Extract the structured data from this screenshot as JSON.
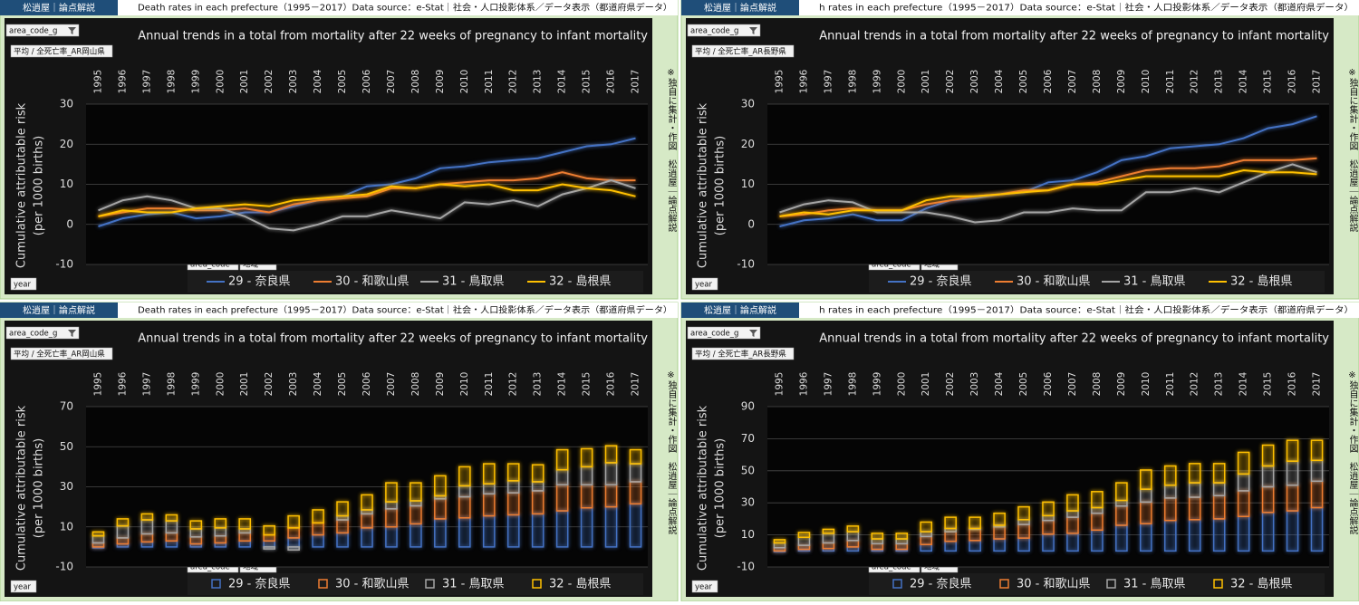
{
  "chart_data": [
    {
      "type": "line",
      "badge": "松逍屋｜論点解説",
      "header": "Death rates in each prefecture（1995－2017）Data source：e-Stat｜社会・人口投影体系／データ表示（都道府県データ）",
      "title": "Annual trends in a total from mortality after 22 weeks of pregnancy to infant mortality",
      "filter_top": "area_code_g",
      "filter_measure": "平均 / 全死亡率_AR岡山県",
      "filter_row": "year",
      "filter_legend": [
        "area_code",
        "地域"
      ],
      "side_note": "※独自に集計・作図　松逍屋｜論点解説",
      "ylabel": [
        "Cumulative attributable risk",
        "(per 1000 births)"
      ],
      "categories": [
        "1995",
        "1996",
        "1997",
        "1998",
        "1999",
        "2000",
        "2001",
        "2002",
        "2003",
        "2004",
        "2005",
        "2006",
        "2007",
        "2008",
        "2009",
        "2010",
        "2011",
        "2012",
        "2013",
        "2014",
        "2015",
        "2016",
        "2017"
      ],
      "series": [
        {
          "name": "29 - 奈良県",
          "color": "#4472c4",
          "values": [
            -0.5,
            1.5,
            2.5,
            3,
            1.5,
            2,
            3,
            3,
            4.5,
            6,
            7,
            9.5,
            10,
            11.5,
            14,
            14.5,
            15.5,
            16,
            16.5,
            18,
            19.5,
            20,
            21.5
          ]
        },
        {
          "name": "30 - 和歌山県",
          "color": "#ed7d31",
          "values": [
            2,
            3,
            4,
            4,
            3.5,
            3.5,
            4,
            3,
            5,
            6,
            6.5,
            7,
            9,
            9,
            10,
            10.5,
            11,
            11,
            11.5,
            13,
            11.5,
            11,
            11
          ]
        },
        {
          "name": "31 - 鳥取県",
          "color": "#a5a5a5",
          "values": [
            3.5,
            6,
            7,
            6,
            4,
            4,
            2,
            -1,
            -1.5,
            0,
            2,
            2,
            3.5,
            2.5,
            1.5,
            5.5,
            5,
            6,
            4.5,
            7.5,
            9,
            11,
            9
          ]
        },
        {
          "name": "32 - 島根県",
          "color": "#ffc000",
          "values": [
            2,
            3.5,
            3,
            3,
            4,
            4.5,
            5,
            4.5,
            6,
            6.5,
            7,
            7.5,
            9.5,
            9,
            10,
            9.5,
            10,
            8.5,
            8.5,
            10,
            9,
            8.5,
            7
          ]
        }
      ],
      "ylim": [
        -10,
        30
      ],
      "yticks": [
        -10,
        0,
        10,
        20,
        30
      ],
      "grid": true
    },
    {
      "type": "line",
      "badge": "松逍屋｜論点解説",
      "header": "h rates in each prefecture（1995－2017）Data source：e-Stat｜社会・人口投影体系／データ表示（都道府県データ）",
      "title": "Annual trends in a total from mortality after 22 weeks of pregnancy to infant mortality",
      "filter_top": "area_code_g",
      "filter_measure": "平均 / 全死亡率_AR長野県",
      "filter_row": "year",
      "filter_legend": [
        "area_code",
        "地域"
      ],
      "side_note": "※独自に集計・作図　松逍屋｜論点解説",
      "ylabel": [
        "Cumulative attributable risk",
        "(per 1000 births)"
      ],
      "categories": [
        "1995",
        "1996",
        "1997",
        "1998",
        "1999",
        "2000",
        "2001",
        "2002",
        "2003",
        "2004",
        "2005",
        "2006",
        "2007",
        "2008",
        "2009",
        "2010",
        "2011",
        "2012",
        "2013",
        "2014",
        "2015",
        "2016",
        "2017"
      ],
      "series": [
        {
          "name": "29 - 奈良県",
          "color": "#4472c4",
          "values": [
            -0.5,
            1,
            1.5,
            2.5,
            1,
            1,
            4,
            6,
            6.5,
            7.5,
            8,
            10.5,
            11,
            13,
            16,
            17,
            19,
            19.5,
            20,
            21.5,
            24,
            25,
            27
          ]
        },
        {
          "name": "30 - 和歌山県",
          "color": "#ed7d31",
          "values": [
            2,
            2.5,
            3.5,
            4,
            3.5,
            3.5,
            5,
            6,
            7,
            7.5,
            8.5,
            8.5,
            10,
            10.5,
            12,
            13.5,
            14,
            14,
            14.5,
            16,
            16,
            16,
            16.5
          ]
        },
        {
          "name": "31 - 鳥取県",
          "color": "#a5a5a5",
          "values": [
            3,
            5,
            6,
            5.5,
            3,
            3,
            3,
            2,
            0.5,
            1,
            3,
            3,
            4,
            3.5,
            3.5,
            8,
            8,
            9,
            8,
            10.5,
            13,
            15,
            13
          ]
        },
        {
          "name": "32 - 島根県",
          "color": "#ffc000",
          "values": [
            2,
            3,
            2.5,
            3.5,
            3.5,
            3.5,
            6,
            7,
            7,
            7.5,
            8,
            8.5,
            10,
            10,
            11,
            12,
            12,
            12,
            12,
            13.5,
            13,
            13,
            12.5
          ]
        }
      ],
      "ylim": [
        -10,
        30
      ],
      "yticks": [
        -10,
        0,
        10,
        20,
        30
      ],
      "grid": true
    },
    {
      "type": "stacked_bar",
      "badge": "松逍屋｜論点解説",
      "header": "Death rates in each prefecture（1995－2017）Data source：e-Stat｜社会・人口投影体系／データ表示（都道府県データ）",
      "title": "Annual trends in a total from mortality after 22 weeks of pregnancy to infant mortality",
      "filter_top": "area_code_g",
      "filter_measure": "平均 / 全死亡率_AR岡山県",
      "filter_row": "year",
      "filter_legend": [
        "area_code",
        "地域"
      ],
      "side_note": "※独自に集計・作図　松逍屋｜論点解説",
      "ylabel": [
        "Cumulative attributable risk",
        "(per 1000 births)"
      ],
      "categories": [
        "1995",
        "1996",
        "1997",
        "1998",
        "1999",
        "2000",
        "2001",
        "2002",
        "2003",
        "2004",
        "2005",
        "2006",
        "2007",
        "2008",
        "2009",
        "2010",
        "2011",
        "2012",
        "2013",
        "2014",
        "2015",
        "2016",
        "2017"
      ],
      "series": [
        {
          "name": "29 - 奈良県",
          "color": "#4472c4",
          "values": [
            -0.5,
            1.5,
            2.5,
            3,
            1.5,
            2,
            3,
            3,
            4.5,
            6,
            7,
            9.5,
            10,
            11.5,
            14,
            14.5,
            15.5,
            16,
            16.5,
            18,
            19.5,
            20,
            21.5
          ]
        },
        {
          "name": "30 - 和歌山県",
          "color": "#ed7d31",
          "values": [
            2,
            3,
            4,
            4,
            3.5,
            3.5,
            4,
            3,
            5,
            6,
            6.5,
            7,
            9,
            9,
            10,
            10.5,
            11,
            11,
            11.5,
            13,
            11.5,
            11,
            11
          ]
        },
        {
          "name": "31 - 鳥取県",
          "color": "#a5a5a5",
          "values": [
            3.5,
            6,
            7,
            6,
            4,
            4,
            2,
            -1,
            -1.5,
            0,
            2,
            2,
            3.5,
            2.5,
            1.5,
            5.5,
            5,
            6,
            4.5,
            7.5,
            9,
            11,
            9
          ]
        },
        {
          "name": "32 - 島根県",
          "color": "#ffc000",
          "values": [
            2,
            3.5,
            3,
            3,
            4,
            4.5,
            5,
            4.5,
            6,
            6.5,
            7,
            7.5,
            9.5,
            9,
            10,
            9.5,
            10,
            8.5,
            8.5,
            10,
            9,
            8.5,
            7
          ]
        }
      ],
      "ylim": [
        -10,
        70
      ],
      "yticks": [
        -10,
        10,
        30,
        50,
        70
      ],
      "grid": true
    },
    {
      "type": "stacked_bar",
      "badge": "松逍屋｜論点解説",
      "header": "h rates in each prefecture（1995－2017）Data source：e-Stat｜社会・人口投影体系／データ表示（都道府県データ）",
      "title": "Annual trends in a total from mortality after 22 weeks of pregnancy to infant mortality",
      "filter_top": "area_code_g",
      "filter_measure": "平均 / 全死亡率_AR長野県",
      "filter_row": "year",
      "filter_legend": [
        "area_code",
        "地域"
      ],
      "side_note": "※独自に集計・作図　松逍屋｜論点解説",
      "ylabel": [
        "Cumulative attributable risk",
        "(per 1000 births)"
      ],
      "categories": [
        "1995",
        "1996",
        "1997",
        "1998",
        "1999",
        "2000",
        "2001",
        "2002",
        "2003",
        "2004",
        "2005",
        "2006",
        "2007",
        "2008",
        "2009",
        "2010",
        "2011",
        "2012",
        "2013",
        "2014",
        "2015",
        "2016",
        "2017"
      ],
      "series": [
        {
          "name": "29 - 奈良県",
          "color": "#4472c4",
          "values": [
            -0.5,
            1,
            1.5,
            2.5,
            1,
            1,
            4,
            6,
            6.5,
            7.5,
            8,
            10.5,
            11,
            13,
            16,
            17,
            19,
            19.5,
            20,
            21.5,
            24,
            25,
            27
          ]
        },
        {
          "name": "30 - 和歌山県",
          "color": "#ed7d31",
          "values": [
            2,
            2.5,
            3.5,
            4,
            3.5,
            3.5,
            5,
            6,
            7,
            7.5,
            8.5,
            8.5,
            10,
            10.5,
            12,
            13.5,
            14,
            14,
            14.5,
            16,
            16,
            16,
            16.5
          ]
        },
        {
          "name": "31 - 鳥取県",
          "color": "#a5a5a5",
          "values": [
            3,
            5,
            6,
            5.5,
            3,
            3,
            3,
            2,
            0.5,
            1,
            3,
            3,
            4,
            3.5,
            3.5,
            8,
            8,
            9,
            8,
            10.5,
            13,
            15,
            13
          ]
        },
        {
          "name": "32 - 島根県",
          "color": "#ffc000",
          "values": [
            2,
            3,
            2.5,
            3.5,
            3.5,
            3.5,
            6,
            7,
            7,
            7.5,
            8,
            8.5,
            10,
            10,
            11,
            12,
            12,
            12,
            12,
            13.5,
            13,
            13,
            12.5
          ]
        }
      ],
      "ylim": [
        -10,
        90
      ],
      "yticks": [
        -10,
        10,
        30,
        50,
        70,
        90
      ],
      "grid": true
    }
  ]
}
